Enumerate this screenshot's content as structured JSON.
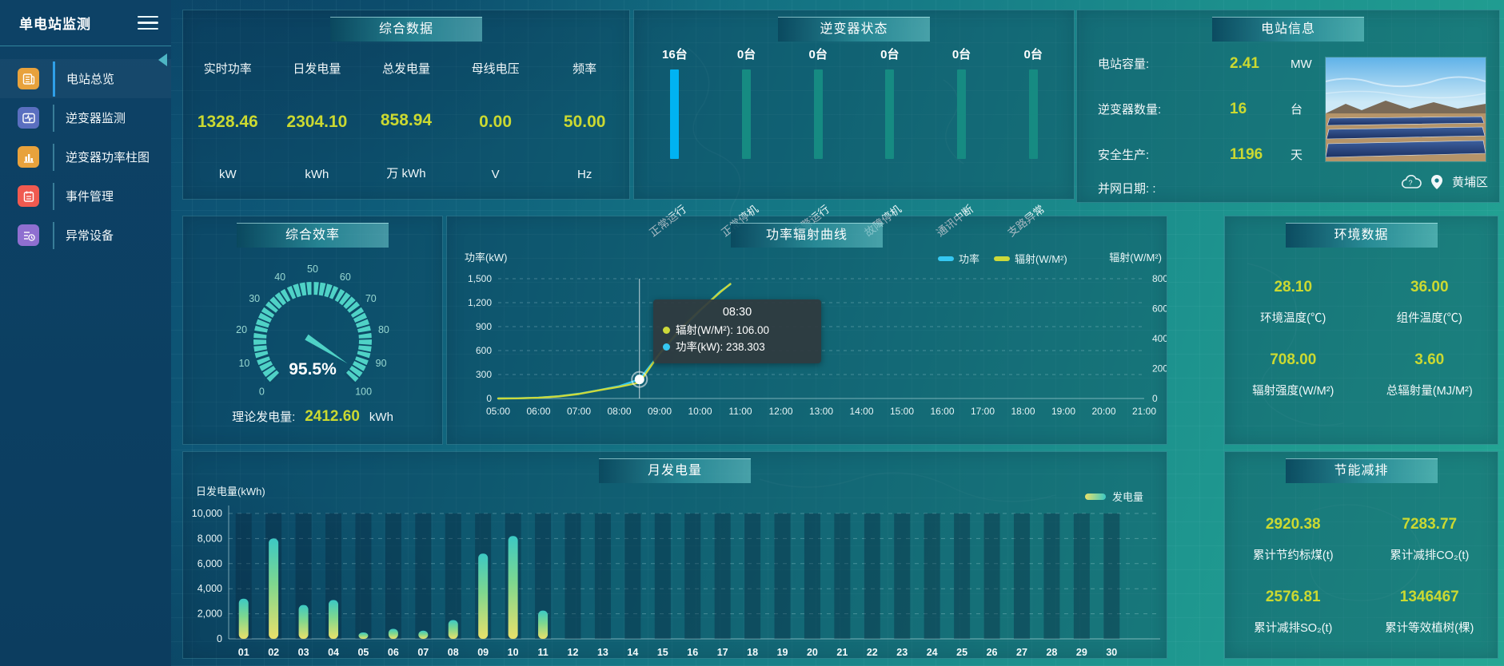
{
  "app": {
    "title": "单电站监测"
  },
  "sidebar": {
    "items": [
      {
        "label": "电站总览",
        "icon": "station-overview",
        "color": "#e8a23c",
        "active": true
      },
      {
        "label": "逆变器监测",
        "icon": "inverter-monitor",
        "color": "#5a6fc0",
        "active": false
      },
      {
        "label": "逆变器功率柱图",
        "icon": "inverter-power-bars",
        "color": "#e8a23c",
        "active": false
      },
      {
        "label": "事件管理",
        "icon": "event-management",
        "color": "#f05a50",
        "active": false
      },
      {
        "label": "异常设备",
        "icon": "abnormal-device",
        "color": "#8f6fd0",
        "active": false
      }
    ]
  },
  "panels": {
    "summary": {
      "title": "综合数据",
      "metrics": [
        {
          "label": "实时功率",
          "value": "1328.46",
          "unit": "kW"
        },
        {
          "label": "日发电量",
          "value": "2304.10",
          "unit": "kWh"
        },
        {
          "label": "总发电量",
          "value": "858.94",
          "unit": "万 kWh"
        },
        {
          "label": "母线电压",
          "value": "0.00",
          "unit": "V"
        },
        {
          "label": "频率",
          "value": "50.00",
          "unit": "Hz"
        }
      ]
    },
    "inverters": {
      "title": "逆变器状态",
      "statuses": [
        {
          "count": "16台",
          "label": "正常运行",
          "highlight": true
        },
        {
          "count": "0台",
          "label": "正常停机",
          "highlight": false
        },
        {
          "count": "0台",
          "label": "告警运行",
          "highlight": false
        },
        {
          "count": "0台",
          "label": "故障停机",
          "highlight": false
        },
        {
          "count": "0台",
          "label": "通讯中断",
          "highlight": false
        },
        {
          "count": "0台",
          "label": "支路异常",
          "highlight": false
        }
      ]
    },
    "station": {
      "title": "电站信息",
      "rows": [
        {
          "label": "电站容量:",
          "value": "2.41",
          "unit": "MW"
        },
        {
          "label": "逆变器数量:",
          "value": "16",
          "unit": "台"
        },
        {
          "label": "安全生产:",
          "value": "1196",
          "unit": "天"
        },
        {
          "label": "并网日期:  :",
          "value": "",
          "unit": ""
        }
      ],
      "location": "黄埔区"
    },
    "efficiency": {
      "title": "综合效率",
      "theory_label": "理论发电量:",
      "theory_value": "2412.60",
      "theory_unit": "kWh"
    },
    "curve": {
      "title": "功率辐射曲线"
    },
    "environment": {
      "title": "环境数据",
      "cells": [
        {
          "value": "28.10",
          "label": "环境温度(℃)"
        },
        {
          "value": "36.00",
          "label": "组件温度(℃)"
        },
        {
          "value": "708.00",
          "label": "辐射强度(W/M²)"
        },
        {
          "value": "3.60",
          "label": "总辐射量(MJ/M²)"
        }
      ]
    },
    "monthly": {
      "title": "月发电量"
    },
    "saving": {
      "title": "节能减排",
      "cells": [
        {
          "value": "2920.38",
          "label": "累计节约标煤(t)"
        },
        {
          "value": "7283.77",
          "label": "累计减排CO₂(t)"
        },
        {
          "value": "2576.81",
          "label": "累计减排SO₂(t)"
        },
        {
          "value": "1346467",
          "label": "累计等效植树(棵)"
        }
      ]
    }
  },
  "chart_data": [
    {
      "id": "efficiency_gauge",
      "type": "gauge",
      "min": 0,
      "max": 100,
      "tick_step": 10,
      "value": 95.5,
      "display": "95.5%"
    },
    {
      "id": "power_radiation",
      "type": "line",
      "title": "功率辐射曲线",
      "x_range": [
        5,
        21
      ],
      "x_ticks": [
        "05:00",
        "06:00",
        "07:00",
        "08:00",
        "09:00",
        "10:00",
        "11:00",
        "12:00",
        "13:00",
        "14:00",
        "15:00",
        "16:00",
        "17:00",
        "18:00",
        "19:00",
        "20:00",
        "21:00"
      ],
      "y_left": {
        "label": "功率(kW)",
        "max": 1500,
        "ticks": [
          "1,500",
          "1,200",
          "900",
          "600",
          "300",
          "0"
        ]
      },
      "y_right": {
        "label": "辐射(W/M²)",
        "max": 800,
        "ticks": [
          "800",
          "600",
          "400",
          "200",
          "0"
        ]
      },
      "legend": [
        {
          "name": "功率",
          "color": "#35c8f2"
        },
        {
          "name": "辐射(W/M²)",
          "color": "#ccd93a"
        }
      ],
      "series": [
        {
          "name": "功率",
          "axis": "left",
          "color": "#35c8f2",
          "points": [
            [
              5,
              0
            ],
            [
              5.5,
              3
            ],
            [
              6,
              10
            ],
            [
              6.5,
              28
            ],
            [
              7,
              60
            ],
            [
              7.5,
              105
            ],
            [
              8,
              155
            ],
            [
              8.5,
              238.3
            ],
            [
              9,
              560
            ],
            [
              9.5,
              840
            ],
            [
              10,
              1100
            ],
            [
              10.5,
              1340
            ],
            [
              10.75,
              1430
            ]
          ]
        },
        {
          "name": "辐射(W/M²)",
          "axis": "right",
          "color": "#ccd93a",
          "points": [
            [
              5,
              0
            ],
            [
              5.5,
              1
            ],
            [
              6,
              5
            ],
            [
              6.5,
              14
            ],
            [
              7,
              30
            ],
            [
              7.5,
              55
            ],
            [
              8,
              78
            ],
            [
              8.5,
              106
            ],
            [
              9,
              300
            ],
            [
              9.5,
              460
            ],
            [
              10,
              590
            ],
            [
              10.5,
              710
            ],
            [
              10.75,
              765
            ]
          ]
        }
      ],
      "tooltip": {
        "x_value": 8.5,
        "time": "08:30",
        "rows": [
          {
            "dot": "#ccd93a",
            "text": "辐射(W/M²): 106.00"
          },
          {
            "dot": "#35c8f2",
            "text": "功率(kW): 238.303"
          }
        ],
        "marker_value": 238.303
      }
    },
    {
      "id": "monthly_generation",
      "type": "bar",
      "ylabel": "日发电量(kWh)",
      "legend": "发电量",
      "ylim": [
        0,
        10000
      ],
      "y_ticks": [
        "10,000",
        "8,000",
        "6,000",
        "4,000",
        "2,000",
        "0"
      ],
      "categories": [
        "01",
        "02",
        "03",
        "04",
        "05",
        "06",
        "07",
        "08",
        "09",
        "10",
        "11",
        "12",
        "13",
        "14",
        "15",
        "16",
        "17",
        "18",
        "19",
        "20",
        "21",
        "22",
        "23",
        "24",
        "25",
        "26",
        "27",
        "28",
        "29",
        "30"
      ],
      "values": [
        3200,
        8000,
        2700,
        3100,
        500,
        800,
        650,
        1500,
        6800,
        8200,
        2250,
        0,
        0,
        0,
        0,
        0,
        0,
        0,
        0,
        0,
        0,
        0,
        0,
        0,
        0,
        0,
        0,
        0,
        0,
        0
      ]
    }
  ],
  "colors": {
    "value_yellow": "#cbd931",
    "bright_blue": "#00b3f2",
    "teal_bar": "#168b82",
    "gauge_teal": "#4fd2c6",
    "bar_top": "#3cc9c4",
    "bar_mid": "#7ed78f",
    "bar_bottom": "#e9e06a",
    "active_menu": "#2f9fe8"
  }
}
